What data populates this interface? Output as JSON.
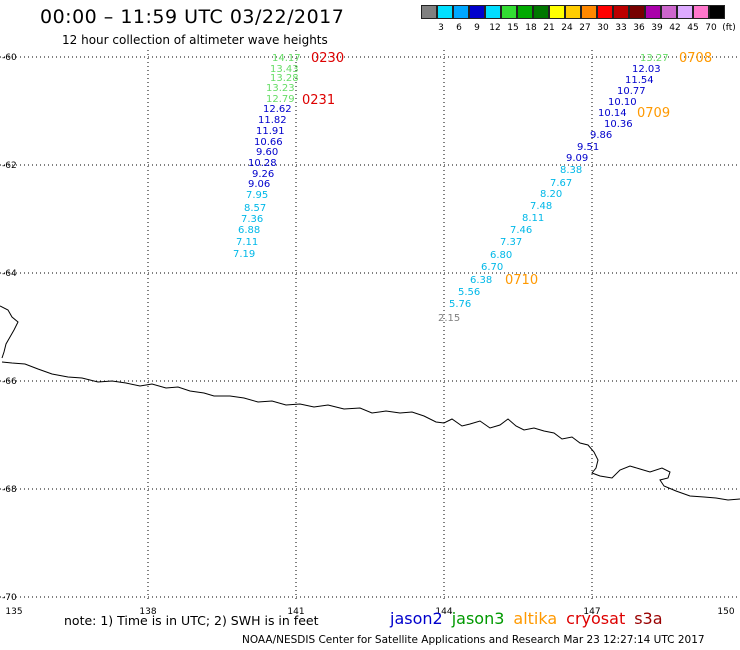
{
  "title": "00:00 – 11:59 UTC 03/22/2017",
  "subtitle": "12 hour collection of altimeter wave heights",
  "legend": {
    "colors": [
      "#808080",
      "#00e0ff",
      "#00a8ff",
      "#0000cc",
      "#00ddff",
      "#33dd33",
      "#00aa00",
      "#007700",
      "#ffff00",
      "#ffcc00",
      "#ff8800",
      "#ff0000",
      "#bb0000",
      "#770000",
      "#aa00aa",
      "#cc66cc",
      "#ddaaff",
      "#ff77cc",
      "#000000"
    ],
    "ticks": [
      "3",
      "6",
      "9",
      "12",
      "15",
      "18",
      "21",
      "24",
      "27",
      "30",
      "33",
      "36",
      "39",
      "42",
      "45",
      "70",
      "(ft)"
    ]
  },
  "map": {
    "lat_labels": [
      "-60",
      "-62",
      "-64",
      "-66",
      "-68",
      "-70"
    ],
    "lon_labels": [
      "135",
      "138",
      "141",
      "144",
      "147",
      "150"
    ],
    "passes": [
      {
        "label": "0230",
        "color": "#dd0000"
      },
      {
        "label": "0231",
        "color": "#dd0000"
      },
      {
        "label": "0708",
        "color": "#ff9900"
      },
      {
        "label": "0709",
        "color": "#ff9900"
      },
      {
        "label": "0710",
        "color": "#ff9900"
      }
    ],
    "track1": [
      "14.17",
      "13.43",
      "13.28",
      "13.23",
      "12.79",
      "12.62",
      "11.82",
      "11.91",
      "10.66",
      "9.60",
      "10.28",
      "9.26",
      "9.06",
      "7.95",
      "8.57",
      "7.36",
      "6.88",
      "7.11",
      "7.19"
    ],
    "track2": [
      "13.27",
      "12.03",
      "11.54",
      "10.77",
      "10.10",
      "10.14",
      "10.36",
      "9.86",
      "9.51",
      "9.09",
      "8.38",
      "7.67",
      "8.20",
      "7.48",
      "8.11",
      "7.46",
      "7.37",
      "6.80",
      "6.70",
      "6.38",
      "5.56",
      "5.76",
      "2.15"
    ]
  },
  "note": "note: 1) Time is in UTC; 2) SWH is in feet",
  "satellites": [
    {
      "name": "jason2",
      "color": "#0000cc"
    },
    {
      "name": "jason3",
      "color": "#009900"
    },
    {
      "name": "altika",
      "color": "#ff9900"
    },
    {
      "name": "cryosat",
      "color": "#dd0000"
    },
    {
      "name": "s3a",
      "color": "#990000"
    }
  ],
  "credit": "NOAA/NESDIS Center for Satellite Applications and Research   Mar 23 12:27:14 UTC 2017"
}
